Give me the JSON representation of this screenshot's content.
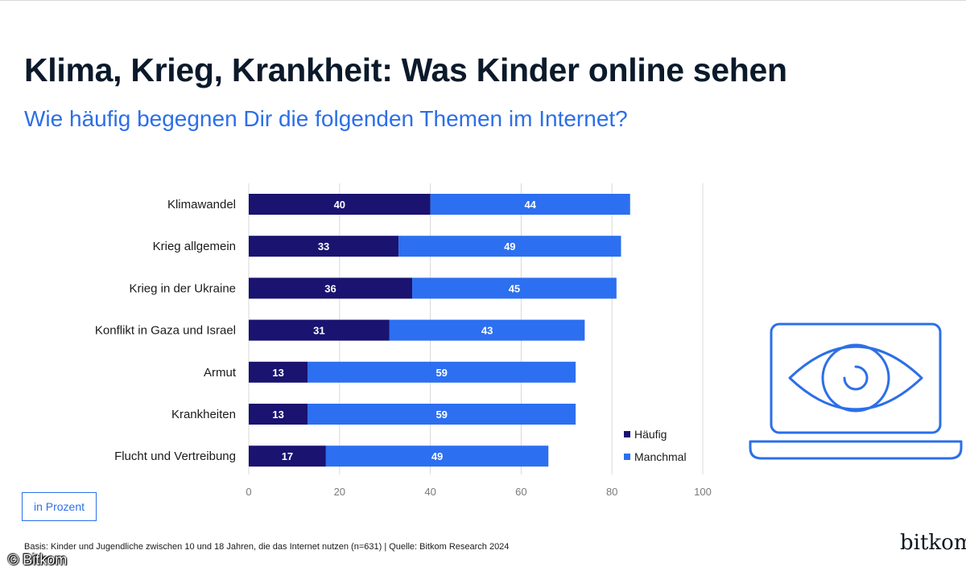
{
  "header": {
    "title": "Klima, Krieg, Krankheit: Was Kinder online sehen",
    "subtitle": "Wie häufig begegnen Dir die folgenden Themen im Internet?"
  },
  "unit_label": "in Prozent",
  "footnote": "Basis: Kinder und Jugendliche zwischen 10 und 18 Jahren, die das Internet nutzen (n=631) | Quelle: Bitkom Research 2024",
  "logo_text": "bitkom",
  "copyright": "© Bitkom",
  "colors": {
    "haeufig": "#1a1370",
    "manchmal": "#2c6ff0",
    "grid": "#d9d9d9",
    "accent": "#2c6fe8"
  },
  "icon": "laptop-eye-icon",
  "chart_data": {
    "type": "bar",
    "orientation": "horizontal",
    "stacked": true,
    "categories": [
      "Klimawandel",
      "Krieg allgemein",
      "Krieg in der Ukraine",
      "Konflikt in Gaza und Israel",
      "Armut",
      "Krankheiten",
      "Flucht und Vertreibung"
    ],
    "series": [
      {
        "name": "Häufig",
        "values": [
          40,
          33,
          36,
          31,
          13,
          13,
          17
        ]
      },
      {
        "name": "Manchmal",
        "values": [
          44,
          49,
          45,
          43,
          59,
          59,
          49
        ]
      }
    ],
    "xlim": [
      0,
      100
    ],
    "xticks": [
      0,
      20,
      40,
      60,
      80,
      100
    ],
    "grid": true,
    "legend_position": "bottom-right",
    "xlabel": "",
    "ylabel": ""
  }
}
